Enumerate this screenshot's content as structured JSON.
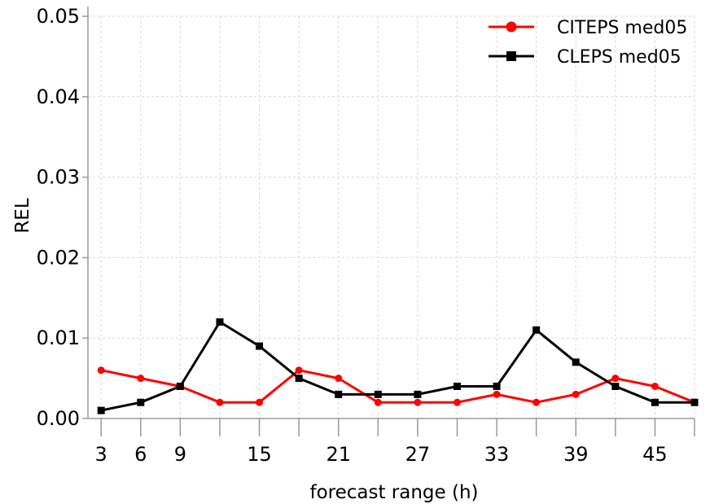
{
  "chart_data": {
    "type": "line",
    "title": "",
    "xlabel": "forecast range (h)",
    "ylabel": "REL",
    "x": [
      3,
      6,
      9,
      12,
      15,
      18,
      21,
      24,
      27,
      30,
      33,
      36,
      39,
      42,
      45,
      48
    ],
    "x_tick_labels": [
      "3",
      "6",
      "9",
      "15",
      "21",
      "27",
      "33",
      "39",
      "45"
    ],
    "y_tick_labels": [
      "0.00",
      "0.01",
      "0.02",
      "0.03",
      "0.04",
      "0.05"
    ],
    "xlim": [
      2,
      48
    ],
    "ylim": [
      0,
      0.05
    ],
    "grid": true,
    "legend_position": "top-right",
    "series": [
      {
        "name": "CITEPS med05",
        "color": "#ff0000",
        "marker": "circle",
        "values": [
          0.006,
          0.005,
          0.004,
          0.002,
          0.002,
          0.006,
          0.005,
          0.002,
          0.002,
          0.002,
          0.003,
          0.002,
          0.003,
          0.005,
          0.004,
          0.002
        ]
      },
      {
        "name": "CLEPS med05",
        "color": "#000000",
        "marker": "square",
        "values": [
          0.001,
          0.002,
          0.004,
          0.012,
          0.009,
          0.005,
          0.003,
          0.003,
          0.003,
          0.004,
          0.004,
          0.011,
          0.007,
          0.004,
          0.002,
          0.002
        ]
      }
    ]
  }
}
